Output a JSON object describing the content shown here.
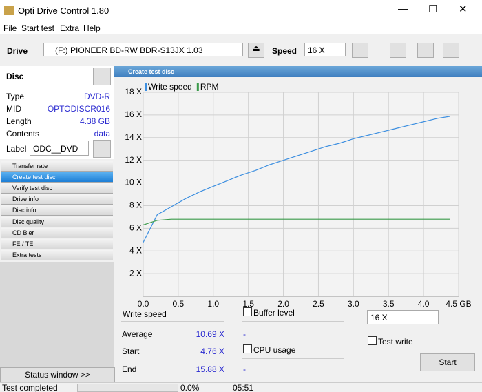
{
  "window": {
    "title": "Opti Drive Control 1.80"
  },
  "menu": [
    "File",
    "Start test",
    "Extra",
    "Help"
  ],
  "toolbar": {
    "drive_label": "Drive",
    "drive": "(F:)   PIONEER BD-RW   BDR-S13JX 1.03",
    "speed_label": "Speed",
    "speed": "16 X"
  },
  "disc": {
    "title": "Disc",
    "rows": [
      [
        "Type",
        "DVD-R"
      ],
      [
        "MID",
        "OPTODISCR016"
      ],
      [
        "Length",
        "4.38 GB"
      ],
      [
        "Contents",
        "data"
      ]
    ],
    "label_caption": "Label",
    "label_value": "ODC__DVD"
  },
  "nav": [
    "Transfer rate",
    "Create test disc",
    "Verify test disc",
    "Drive info",
    "Disc info",
    "Disc quality",
    "CD Bler",
    "FE / TE",
    "Extra tests"
  ],
  "status_window": "Status window >>",
  "panel_title": "Create test disc",
  "chart": {
    "type": "line",
    "x": [
      0,
      0.2,
      0.4,
      0.6,
      0.8,
      1.0,
      1.2,
      1.4,
      1.6,
      1.8,
      2.0,
      2.2,
      2.4,
      2.6,
      2.8,
      3.0,
      3.2,
      3.4,
      3.6,
      3.8,
      4.0,
      4.2,
      4.38
    ],
    "series": [
      {
        "name": "Write speed",
        "color": "#3d8fe0",
        "values": [
          4.76,
          7.2,
          7.9,
          8.6,
          9.2,
          9.7,
          10.2,
          10.7,
          11.1,
          11.6,
          12.0,
          12.4,
          12.8,
          13.2,
          13.5,
          13.9,
          14.2,
          14.5,
          14.8,
          15.1,
          15.4,
          15.7,
          15.88
        ]
      },
      {
        "name": "RPM",
        "color": "#3a9a4a",
        "values": [
          6.3,
          6.7,
          6.8,
          6.8,
          6.8,
          6.8,
          6.8,
          6.8,
          6.8,
          6.8,
          6.8,
          6.8,
          6.8,
          6.8,
          6.8,
          6.8,
          6.8,
          6.8,
          6.8,
          6.8,
          6.8,
          6.8,
          6.8
        ]
      }
    ],
    "xlim": [
      0,
      4.5
    ],
    "xticks": [
      {
        "value": 0,
        "label": "0.0"
      },
      {
        "value": 0.5,
        "label": "0.5"
      },
      {
        "value": 1,
        "label": "1.0"
      },
      {
        "value": 1.5,
        "label": "1.5"
      },
      {
        "value": 2,
        "label": "2.0"
      },
      {
        "value": 2.5,
        "label": "2.5"
      },
      {
        "value": 3,
        "label": "3.0"
      },
      {
        "value": 3.5,
        "label": "3.5"
      },
      {
        "value": 4,
        "label": "4.0"
      },
      {
        "value": 4.5,
        "label": "4.5 GB"
      }
    ],
    "ylim": [
      0,
      18
    ],
    "yticks": [
      {
        "value": 2,
        "label": "2 X"
      },
      {
        "value": 4,
        "label": "4 X"
      },
      {
        "value": 6,
        "label": "6 X"
      },
      {
        "value": 8,
        "label": "8 X"
      },
      {
        "value": 10,
        "label": "10 X"
      },
      {
        "value": 12,
        "label": "12 X"
      },
      {
        "value": 14,
        "label": "14 X"
      },
      {
        "value": 16,
        "label": "16 X"
      },
      {
        "value": 18,
        "label": "18 X"
      }
    ],
    "grid": true
  },
  "results": {
    "header": "Write speed",
    "rows": [
      [
        "Average",
        "10.69 X",
        "-"
      ],
      [
        "Start",
        "4.76 X"
      ],
      [
        "End",
        "15.88 X",
        "-"
      ]
    ]
  },
  "options": {
    "buffer": "Buffer level",
    "cpu": "CPU usage",
    "speed": "16 X",
    "test_write": "Test write",
    "start": "Start"
  },
  "statusbar": [
    "Test completed",
    "0.0%",
    "05:51"
  ]
}
